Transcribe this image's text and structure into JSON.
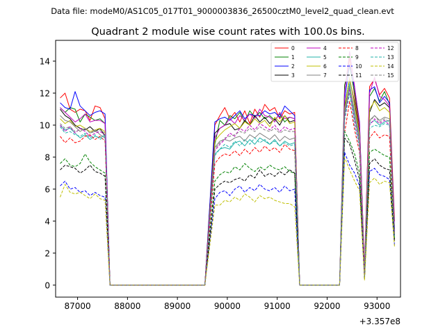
{
  "chart_data": {
    "type": "line",
    "supertitle": "Data file: modeM0/AS1C05_017T01_9000003836_26500cztM0_level2_quad_clean.evt",
    "title": "Quadrant 2 module wise count rates with 100.0s bins.",
    "xlabel": "",
    "ylabel": "",
    "x_offset_label": "+3.357e8",
    "xlim": [
      86560,
      93470
    ],
    "ylim": [
      -0.75,
      15.3
    ],
    "xticks": [
      87000,
      88000,
      89000,
      90000,
      91000,
      92000,
      93000
    ],
    "xtick_labels": [
      "87000",
      "88000",
      "89000",
      "90000",
      "91000",
      "92000",
      "93000"
    ],
    "yticks": [
      0,
      2,
      4,
      6,
      8,
      10,
      12,
      14
    ],
    "ytick_labels": [
      "0",
      "2",
      "4",
      "6",
      "8",
      "10",
      "12",
      "14"
    ],
    "legend_position": "top-right",
    "legend_columns": 4,
    "segments": [
      {
        "start": 86650,
        "n": 10
      },
      {
        "start": 87650,
        "n": 20
      },
      {
        "start": 89750,
        "n": 17
      },
      {
        "start": 91450,
        "n": 9
      },
      {
        "start": 92350,
        "n": 11
      }
    ],
    "series": [
      {
        "name": "0",
        "color": "#ff0000",
        "dashed": false,
        "values": [
          11.7,
          12.0,
          11.0,
          10.8,
          11.0,
          10.9,
          10.3,
          11.2,
          11.1,
          10.4,
          0,
          0,
          0,
          0,
          0,
          0,
          0,
          0,
          0,
          0,
          0,
          0,
          0,
          0,
          0,
          0,
          0,
          0,
          0,
          0,
          10.0,
          10.6,
          11.1,
          10.4,
          10.8,
          10.2,
          10.9,
          10.1,
          11.0,
          10.5,
          11.3,
          10.9,
          11.1,
          10.4,
          10.9,
          10.7,
          10.8,
          0,
          0,
          0,
          0,
          0,
          0,
          0,
          0,
          0,
          12.1,
          14.2,
          11.8,
          9.8,
          1.0,
          12.4,
          12.9,
          11.9,
          12.3,
          11.7,
          4.0
        ]
      },
      {
        "name": "1",
        "color": "#008000",
        "dashed": false,
        "values": [
          11.1,
          10.8,
          11.1,
          11.0,
          10.2,
          10.7,
          10.5,
          10.3,
          10.4,
          10.1,
          0,
          0,
          0,
          0,
          0,
          0,
          0,
          0,
          0,
          0,
          0,
          0,
          0,
          0,
          0,
          0,
          0,
          0,
          0,
          0,
          8.8,
          10.3,
          10.0,
          10.6,
          10.4,
          10.8,
          10.2,
          10.9,
          10.5,
          10.8,
          10.4,
          10.6,
          10.3,
          10.7,
          10.2,
          10.5,
          10.4,
          0,
          0,
          0,
          0,
          0,
          0,
          0,
          0,
          0,
          12.5,
          13.7,
          12.0,
          10.0,
          0.8,
          11.8,
          12.3,
          11.5,
          12.1,
          11.3,
          3.5
        ]
      },
      {
        "name": "2",
        "color": "#0000ff",
        "dashed": false,
        "values": [
          11.4,
          11.1,
          11.0,
          12.1,
          11.2,
          10.9,
          10.6,
          10.8,
          10.9,
          10.7,
          0,
          0,
          0,
          0,
          0,
          0,
          0,
          0,
          0,
          0,
          0,
          0,
          0,
          0,
          0,
          0,
          0,
          0,
          0,
          0,
          10.2,
          10.4,
          10.5,
          10.3,
          10.6,
          10.9,
          10.4,
          10.7,
          10.6,
          10.6,
          10.9,
          10.7,
          10.8,
          10.5,
          11.2,
          10.9,
          10.6,
          0,
          0,
          0,
          0,
          0,
          0,
          0,
          0,
          0,
          11.6,
          13.8,
          12.3,
          10.2,
          0.8,
          12.2,
          12.4,
          11.4,
          11.8,
          11.4,
          3.5
        ]
      },
      {
        "name": "3",
        "color": "#000000",
        "dashed": false,
        "values": [
          11.0,
          10.6,
          10.4,
          10.0,
          9.8,
          9.7,
          9.9,
          9.6,
          9.8,
          9.3,
          0,
          0,
          0,
          0,
          0,
          0,
          0,
          0,
          0,
          0,
          0,
          0,
          0,
          0,
          0,
          0,
          0,
          0,
          0,
          0,
          9.5,
          9.8,
          10.0,
          10.1,
          9.7,
          9.8,
          10.3,
          10.0,
          10.6,
          10.2,
          10.5,
          10.1,
          10.4,
          10.0,
          10.6,
          10.2,
          10.3,
          0,
          0,
          0,
          0,
          0,
          0,
          0,
          0,
          0,
          11.2,
          12.9,
          11.4,
          9.5,
          0.7,
          10.8,
          11.6,
          11.2,
          11.4,
          11.1,
          3.0
        ]
      },
      {
        "name": "4",
        "color": "#bf00bf",
        "dashed": false,
        "values": [
          11.1,
          10.8,
          10.5,
          10.2,
          10.4,
          10.7,
          10.2,
          10.3,
          10.3,
          10.1,
          0,
          0,
          0,
          0,
          0,
          0,
          0,
          0,
          0,
          0,
          0,
          0,
          0,
          0,
          0,
          0,
          0,
          0,
          0,
          0,
          9.2,
          9.8,
          10.0,
          10.4,
          10.1,
          10.6,
          10.3,
          10.7,
          10.4,
          11.0,
          10.6,
          10.5,
          10.2,
          10.8,
          10.4,
          10.5,
          10.4,
          0,
          0,
          0,
          0,
          0,
          0,
          0,
          0,
          0,
          12.0,
          14.6,
          12.4,
          10.1,
          1.0,
          12.0,
          13.0,
          11.8,
          11.6,
          11.2,
          3.3
        ]
      },
      {
        "name": "5",
        "color": "#20b2aa",
        "dashed": false,
        "values": [
          10.0,
          9.7,
          9.8,
          9.5,
          9.2,
          9.4,
          9.1,
          9.3,
          9.2,
          9.4,
          0,
          0,
          0,
          0,
          0,
          0,
          0,
          0,
          0,
          0,
          0,
          0,
          0,
          0,
          0,
          0,
          0,
          0,
          0,
          0,
          8.2,
          8.5,
          8.6,
          8.5,
          8.9,
          9.0,
          8.7,
          9.1,
          8.8,
          9.2,
          9.0,
          8.8,
          9.1,
          8.7,
          9.0,
          8.8,
          8.9,
          0,
          0,
          0,
          0,
          0,
          0,
          0,
          0,
          0,
          10.7,
          12.6,
          10.6,
          9.0,
          0.6,
          10.1,
          10.3,
          10.0,
          10.2,
          10.3,
          3.0
        ]
      },
      {
        "name": "6",
        "color": "#bfbf00",
        "dashed": false,
        "values": [
          10.4,
          10.1,
          10.3,
          9.9,
          10.0,
          9.8,
          9.6,
          9.7,
          9.8,
          9.6,
          0,
          0,
          0,
          0,
          0,
          0,
          0,
          0,
          0,
          0,
          0,
          0,
          0,
          0,
          0,
          0,
          0,
          0,
          0,
          0,
          9.0,
          9.4,
          9.7,
          9.9,
          10.1,
          9.8,
          10.2,
          10.0,
          10.4,
          10.1,
          10.3,
          9.9,
          10.5,
          10.2,
          10.6,
          10.1,
          10.2,
          0,
          0,
          0,
          0,
          0,
          0,
          0,
          0,
          0,
          11.0,
          13.0,
          11.2,
          9.4,
          0.8,
          11.0,
          11.5,
          10.9,
          11.1,
          10.8,
          3.0
        ]
      },
      {
        "name": "7",
        "color": "#808080",
        "dashed": false,
        "values": [
          10.6,
          10.3,
          10.2,
          9.9,
          9.6,
          9.8,
          9.5,
          9.7,
          9.4,
          9.2,
          0,
          0,
          0,
          0,
          0,
          0,
          0,
          0,
          0,
          0,
          0,
          0,
          0,
          0,
          0,
          0,
          0,
          0,
          0,
          0,
          8.6,
          9.0,
          9.1,
          9.0,
          9.2,
          9.3,
          9.0,
          9.4,
          9.2,
          9.5,
          9.3,
          9.1,
          9.4,
          9.0,
          9.3,
          9.1,
          9.2,
          0,
          0,
          0,
          0,
          0,
          0,
          0,
          0,
          0,
          10.9,
          12.4,
          10.9,
          9.2,
          0.6,
          10.3,
          10.6,
          10.3,
          10.5,
          10.4,
          3.0
        ]
      },
      {
        "name": "8",
        "color": "#ff0000",
        "dashed": true,
        "values": [
          9.3,
          8.9,
          9.2,
          8.9,
          9.0,
          9.3,
          9.4,
          9.1,
          9.3,
          9.0,
          0,
          0,
          0,
          0,
          0,
          0,
          0,
          0,
          0,
          0,
          0,
          0,
          0,
          0,
          0,
          0,
          0,
          0,
          0,
          0,
          7.6,
          8.0,
          8.2,
          8.1,
          8.4,
          8.1,
          8.5,
          8.2,
          8.6,
          8.3,
          8.7,
          8.4,
          8.6,
          8.3,
          8.8,
          8.5,
          8.4,
          0,
          0,
          0,
          0,
          0,
          0,
          0,
          0,
          0,
          9.5,
          11.5,
          9.7,
          8.3,
          0.5,
          9.2,
          9.6,
          9.2,
          9.4,
          9.3,
          2.8
        ]
      },
      {
        "name": "9",
        "color": "#008000",
        "dashed": true,
        "values": [
          7.6,
          7.9,
          7.5,
          7.4,
          7.6,
          8.2,
          7.7,
          7.4,
          7.2,
          7.0,
          0,
          0,
          0,
          0,
          0,
          0,
          0,
          0,
          0,
          0,
          0,
          0,
          0,
          0,
          0,
          0,
          0,
          0,
          0,
          0,
          6.5,
          6.9,
          7.1,
          7.0,
          7.4,
          7.2,
          7.6,
          7.3,
          7.1,
          7.4,
          7.2,
          7.5,
          7.3,
          7.2,
          7.4,
          7.1,
          7.0,
          0,
          0,
          0,
          0,
          0,
          0,
          0,
          0,
          0,
          9.6,
          9.0,
          8.2,
          7.0,
          0.4,
          8.3,
          8.5,
          8.3,
          8.1,
          8.0,
          2.9
        ]
      },
      {
        "name": "10",
        "color": "#0000ff",
        "dashed": true,
        "values": [
          6.2,
          6.5,
          6.0,
          6.1,
          5.8,
          5.9,
          5.6,
          5.8,
          5.6,
          5.5,
          0,
          0,
          0,
          0,
          0,
          0,
          0,
          0,
          0,
          0,
          0,
          0,
          0,
          0,
          0,
          0,
          0,
          0,
          0,
          0,
          5.4,
          5.8,
          5.9,
          5.6,
          6.0,
          6.2,
          5.8,
          6.1,
          5.9,
          6.3,
          6.0,
          5.9,
          6.1,
          5.8,
          6.2,
          5.9,
          6.0,
          0,
          0,
          0,
          0,
          0,
          0,
          0,
          0,
          0,
          8.3,
          7.5,
          7.0,
          6.2,
          0.4,
          7.1,
          7.3,
          6.9,
          6.8,
          6.6,
          2.5
        ]
      },
      {
        "name": "11",
        "color": "#000000",
        "dashed": true,
        "values": [
          7.2,
          7.5,
          7.4,
          7.3,
          7.0,
          7.2,
          7.5,
          7.1,
          7.0,
          6.8,
          0,
          0,
          0,
          0,
          0,
          0,
          0,
          0,
          0,
          0,
          0,
          0,
          0,
          0,
          0,
          0,
          0,
          0,
          0,
          0,
          6.0,
          6.3,
          6.5,
          6.4,
          6.6,
          6.7,
          6.5,
          6.9,
          6.7,
          7.2,
          6.8,
          7.0,
          6.8,
          7.1,
          6.9,
          7.2,
          7.0,
          0,
          0,
          0,
          0,
          0,
          0,
          0,
          0,
          0,
          9.2,
          8.8,
          7.8,
          6.6,
          0.4,
          7.6,
          7.9,
          7.5,
          7.3,
          7.2,
          2.7
        ]
      },
      {
        "name": "12",
        "color": "#bf00bf",
        "dashed": true,
        "values": [
          10.0,
          9.6,
          9.9,
          9.5,
          9.8,
          9.6,
          9.3,
          9.5,
          9.6,
          9.4,
          0,
          0,
          0,
          0,
          0,
          0,
          0,
          0,
          0,
          0,
          0,
          0,
          0,
          0,
          0,
          0,
          0,
          0,
          0,
          0,
          8.4,
          8.8,
          9.1,
          9.5,
          9.3,
          9.8,
          9.6,
          10.0,
          9.7,
          10.1,
          9.9,
          9.7,
          10.0,
          9.6,
          9.9,
          9.7,
          9.8,
          0,
          0,
          0,
          0,
          0,
          0,
          0,
          0,
          0,
          10.5,
          12.2,
          10.3,
          8.8,
          0.7,
          10.0,
          10.4,
          10.1,
          10.3,
          10.0,
          3.2
        ]
      },
      {
        "name": "13",
        "color": "#20b2aa",
        "dashed": true,
        "values": [
          9.9,
          9.5,
          9.6,
          9.4,
          9.3,
          9.5,
          9.2,
          9.4,
          9.1,
          9.3,
          0,
          0,
          0,
          0,
          0,
          0,
          0,
          0,
          0,
          0,
          0,
          0,
          0,
          0,
          0,
          0,
          0,
          0,
          0,
          0,
          8.1,
          8.5,
          8.8,
          8.6,
          9.0,
          8.7,
          9.1,
          8.8,
          9.2,
          8.9,
          9.1,
          8.8,
          9.0,
          8.7,
          8.9,
          8.7,
          8.8,
          0,
          0,
          0,
          0,
          0,
          0,
          0,
          0,
          0,
          10.3,
          12.0,
          10.0,
          8.6,
          0.5,
          9.8,
          10.0,
          9.9,
          10.1,
          10.0,
          3.0
        ]
      },
      {
        "name": "14",
        "color": "#bfbf00",
        "dashed": true,
        "values": [
          5.5,
          6.3,
          5.8,
          5.7,
          5.8,
          5.6,
          5.4,
          5.7,
          5.4,
          5.3,
          0,
          0,
          0,
          0,
          0,
          0,
          0,
          0,
          0,
          0,
          0,
          0,
          0,
          0,
          0,
          0,
          0,
          0,
          0,
          0,
          5.0,
          5.0,
          5.3,
          5.2,
          5.5,
          5.3,
          5.7,
          5.5,
          5.2,
          5.6,
          5.4,
          5.5,
          5.3,
          5.2,
          5.1,
          5.1,
          4.9,
          0,
          0,
          0,
          0,
          0,
          0,
          0,
          0,
          0,
          8.0,
          7.2,
          6.5,
          5.9,
          0.3,
          6.4,
          6.7,
          6.3,
          6.5,
          6.4,
          2.4
        ]
      },
      {
        "name": "15",
        "color": "#808080",
        "dashed": true,
        "values": [
          10.1,
          9.8,
          9.9,
          9.6,
          9.7,
          9.8,
          9.5,
          9.6,
          9.7,
          9.5,
          0,
          0,
          0,
          0,
          0,
          0,
          0,
          0,
          0,
          0,
          0,
          0,
          0,
          0,
          0,
          0,
          0,
          0,
          0,
          0,
          8.5,
          8.9,
          9.2,
          9.3,
          9.4,
          9.6,
          9.5,
          9.8,
          9.6,
          9.9,
          9.7,
          9.6,
          9.8,
          9.5,
          9.7,
          9.6,
          9.6,
          0,
          0,
          0,
          0,
          0,
          0,
          0,
          0,
          0,
          10.6,
          12.3,
          10.5,
          8.9,
          0.6,
          10.2,
          10.6,
          10.2,
          10.4,
          10.2,
          3.1
        ]
      }
    ]
  }
}
